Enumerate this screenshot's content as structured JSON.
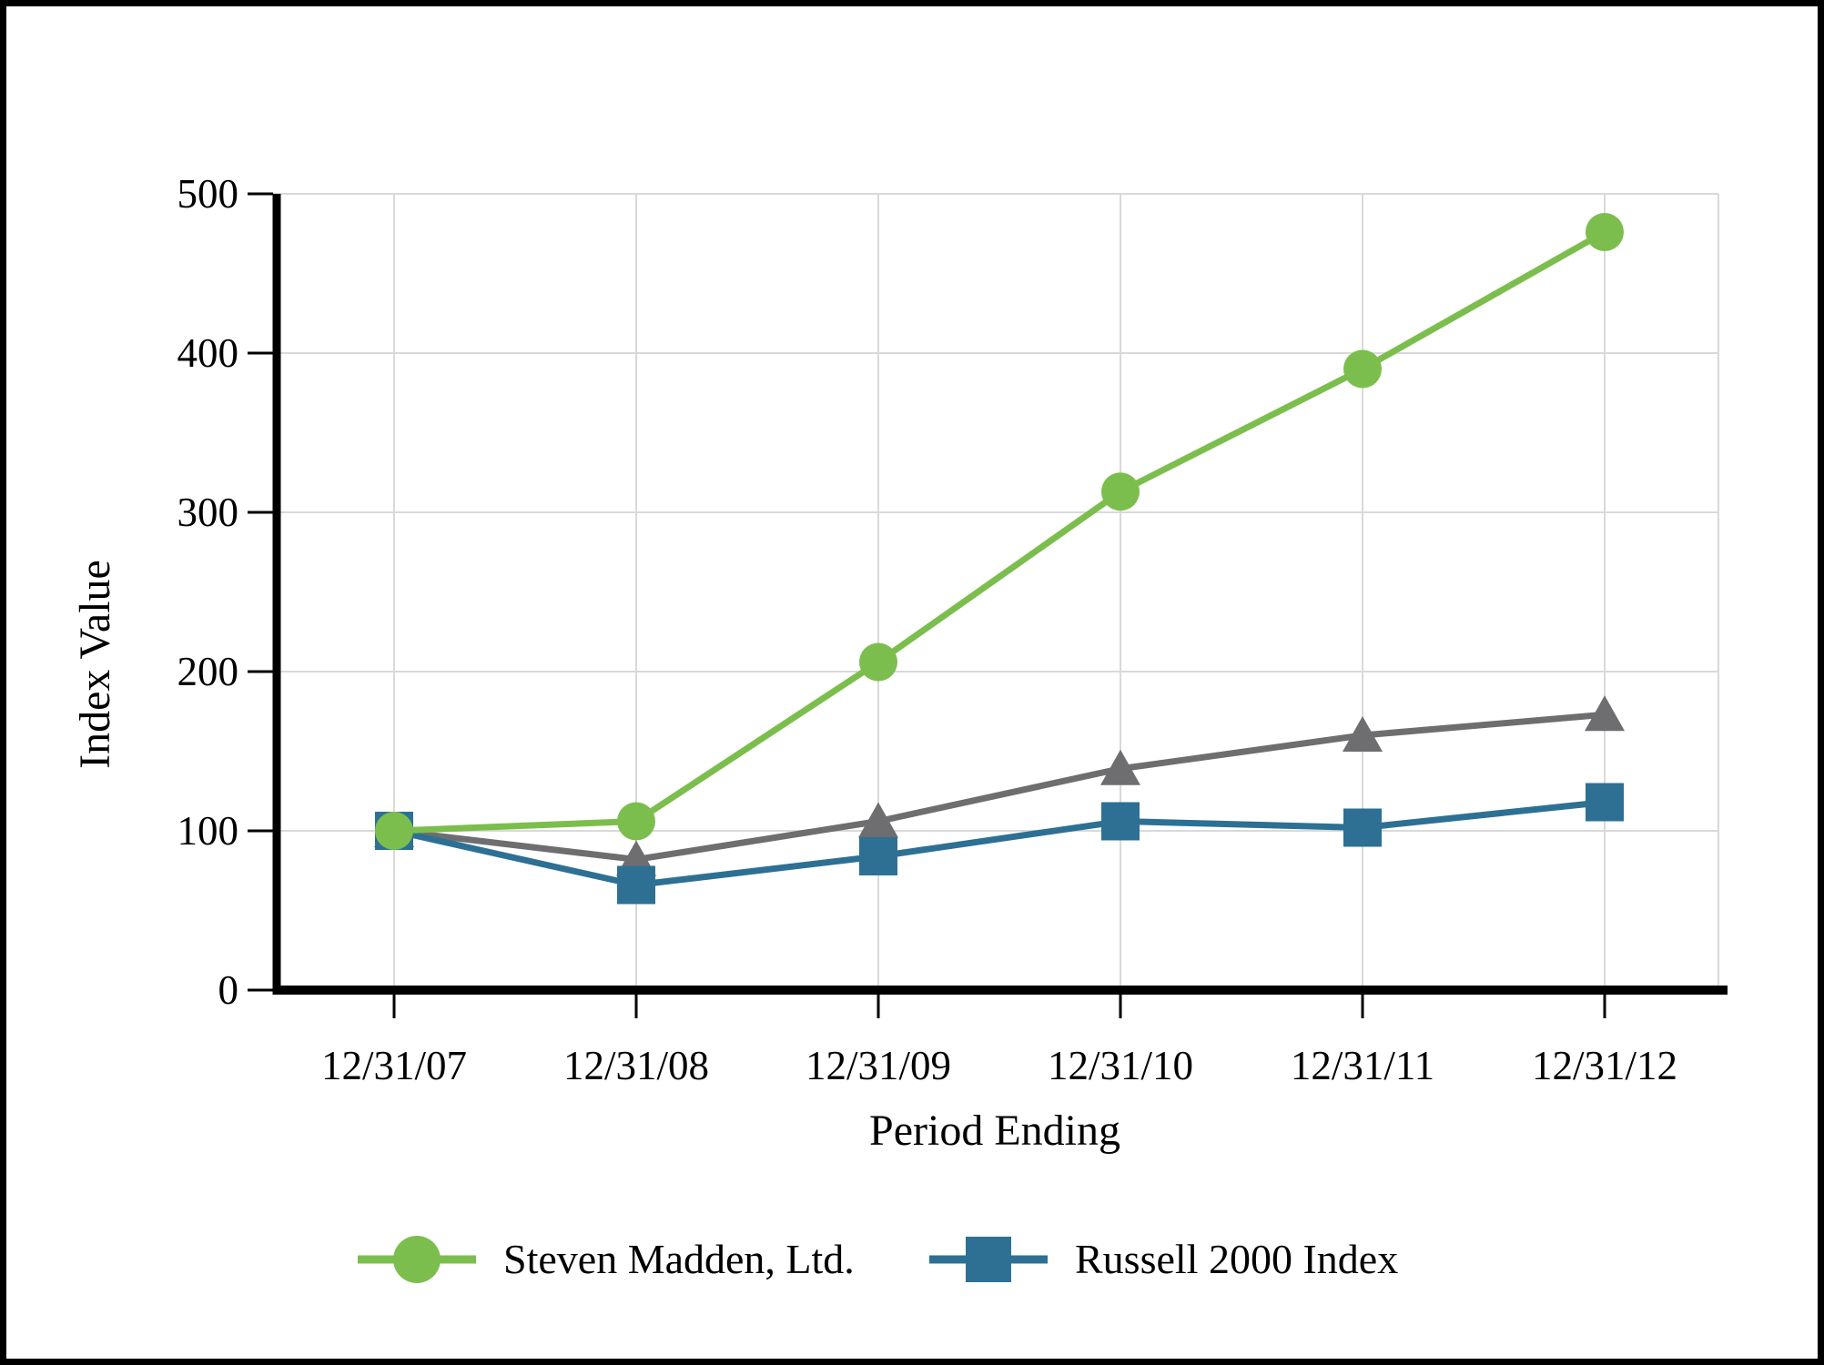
{
  "chart_data": {
    "type": "line",
    "title": "",
    "xlabel": "Period Ending",
    "ylabel": "Index Value",
    "categories": [
      "12/31/07",
      "12/31/08",
      "12/31/09",
      "12/31/10",
      "12/31/11",
      "12/31/12"
    ],
    "ylim": [
      0,
      500
    ],
    "yticks": [
      0,
      100,
      200,
      300,
      400,
      500
    ],
    "grid": true,
    "grid_color": "#D9D9D9",
    "axis_color": "#000000",
    "legend_position": "bottom",
    "series": [
      {
        "name": "Steven Madden, Ltd.",
        "marker": "circle",
        "color": "#7CBE4D",
        "legend_visible": true,
        "values": [
          100,
          106,
          206,
          313,
          390,
          476
        ]
      },
      {
        "name": "Russell 2000 Index",
        "marker": "square",
        "color": "#2D7094",
        "legend_visible": true,
        "values": [
          100,
          66,
          84,
          106,
          102,
          118
        ]
      },
      {
        "name": "",
        "marker": "triangle",
        "color": "#6E6E70",
        "legend_visible": false,
        "values": [
          100,
          82,
          106,
          139,
          160,
          173
        ]
      }
    ]
  }
}
